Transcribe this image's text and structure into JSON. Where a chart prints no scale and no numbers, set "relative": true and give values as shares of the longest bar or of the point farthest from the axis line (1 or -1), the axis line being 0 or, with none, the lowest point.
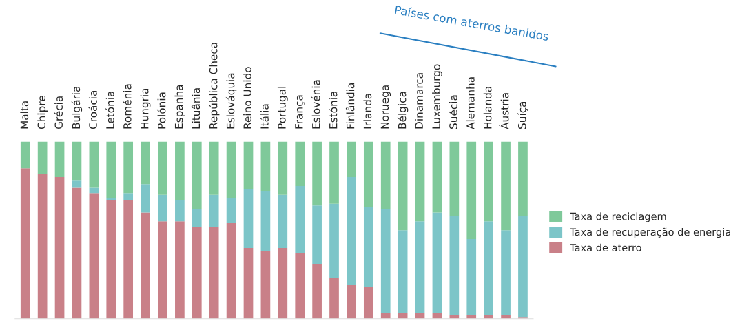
{
  "chart_data": {
    "type": "bar",
    "stacked": true,
    "relative": true,
    "legend": "right",
    "categories": [
      "Malta",
      "Chipre",
      "Grécia",
      "Bulgária",
      "Croácia",
      "Letónia",
      "Roménia",
      "Hungria",
      "Polónia",
      "Espanha",
      "Lituânia",
      "República Checa",
      "Eslováquia",
      "Reino Unido",
      "Itália",
      "Portugal",
      "França",
      "Eslovénia",
      "Estónia",
      "Finlândia",
      "Irlanda",
      "Noruega",
      "Bélgica",
      "Dinamarca",
      "Luxemburgo",
      "Suécia",
      "Alemanha",
      "Holanda",
      "Áustria",
      "Suíça"
    ],
    "series": [
      {
        "name": "Taxa de aterro",
        "color": "#c98088",
        "values": [
          0.85,
          0.82,
          0.8,
          0.74,
          0.71,
          0.67,
          0.67,
          0.6,
          0.55,
          0.55,
          0.52,
          0.52,
          0.54,
          0.4,
          0.38,
          0.4,
          0.37,
          0.31,
          0.23,
          0.19,
          0.18,
          0.03,
          0.03,
          0.03,
          0.03,
          0.02,
          0.02,
          0.02,
          0.02,
          0.01
        ]
      },
      {
        "name": "Taxa de recuperação de energia",
        "color": "#7cc5c8",
        "values": [
          0,
          0,
          0,
          0.04,
          0.03,
          0.01,
          0.04,
          0.16,
          0.15,
          0.12,
          0.1,
          0.18,
          0.14,
          0.33,
          0.34,
          0.3,
          0.38,
          0.33,
          0.42,
          0.61,
          0.45,
          0.59,
          0.47,
          0.52,
          0.57,
          0.56,
          0.43,
          0.53,
          0.48,
          0.57
        ]
      },
      {
        "name": "Taxa de reciclagem",
        "color": "#7fc99a",
        "values": [
          0.15,
          0.18,
          0.2,
          0.22,
          0.26,
          0.32,
          0.29,
          0.24,
          0.3,
          0.33,
          0.38,
          0.3,
          0.32,
          0.27,
          0.28,
          0.3,
          0.25,
          0.36,
          0.35,
          0.2,
          0.37,
          0.38,
          0.5,
          0.45,
          0.4,
          0.42,
          0.55,
          0.45,
          0.5,
          0.42
        ]
      }
    ],
    "annotations": [
      "Países com aterros banidos"
    ]
  }
}
